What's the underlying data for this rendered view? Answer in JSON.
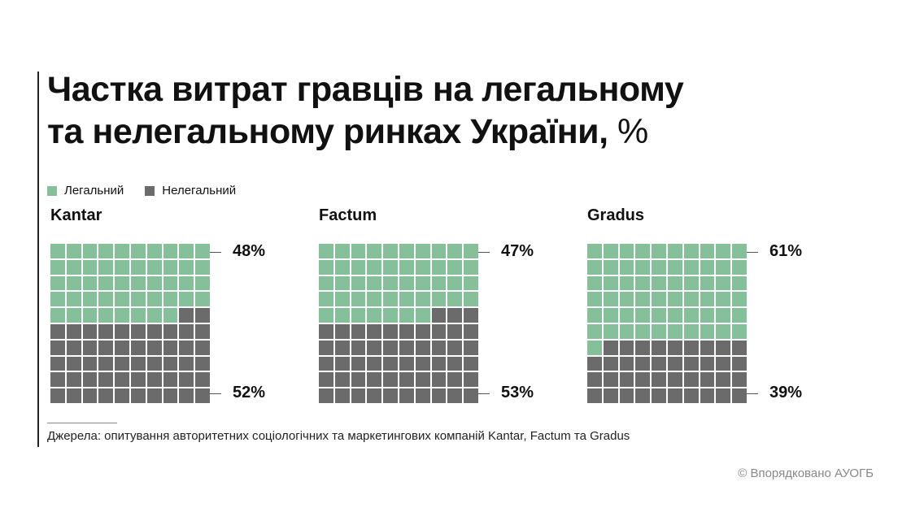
{
  "title": {
    "line1": "Частка витрат гравців на легальному",
    "line2": "та нелегальному ринках України,",
    "unit": "%"
  },
  "legend": {
    "legal_label": "Легальний",
    "illegal_label": "Нелегальний"
  },
  "colors": {
    "legal": "#86c09a",
    "illegal": "#6b6b6b"
  },
  "chart_data": {
    "type": "waffle",
    "grid": [
      10,
      10
    ],
    "series_names": [
      "Легальний",
      "Нелегальний"
    ],
    "panels": [
      {
        "name": "Kantar",
        "legal": 48,
        "illegal": 52,
        "legal_label": "48%",
        "illegal_label": "52%"
      },
      {
        "name": "Factum",
        "legal": 47,
        "illegal": 53,
        "legal_label": "47%",
        "illegal_label": "53%"
      },
      {
        "name": "Gradus",
        "legal": 61,
        "illegal": 39,
        "legal_label": "61%",
        "illegal_label": "39%"
      }
    ]
  },
  "source": "Джерела: опитування авторитетних соціологічних та маркетингових компаній Kantar, Factum та Gradus",
  "credit": "© Впорядковано АУОГБ"
}
